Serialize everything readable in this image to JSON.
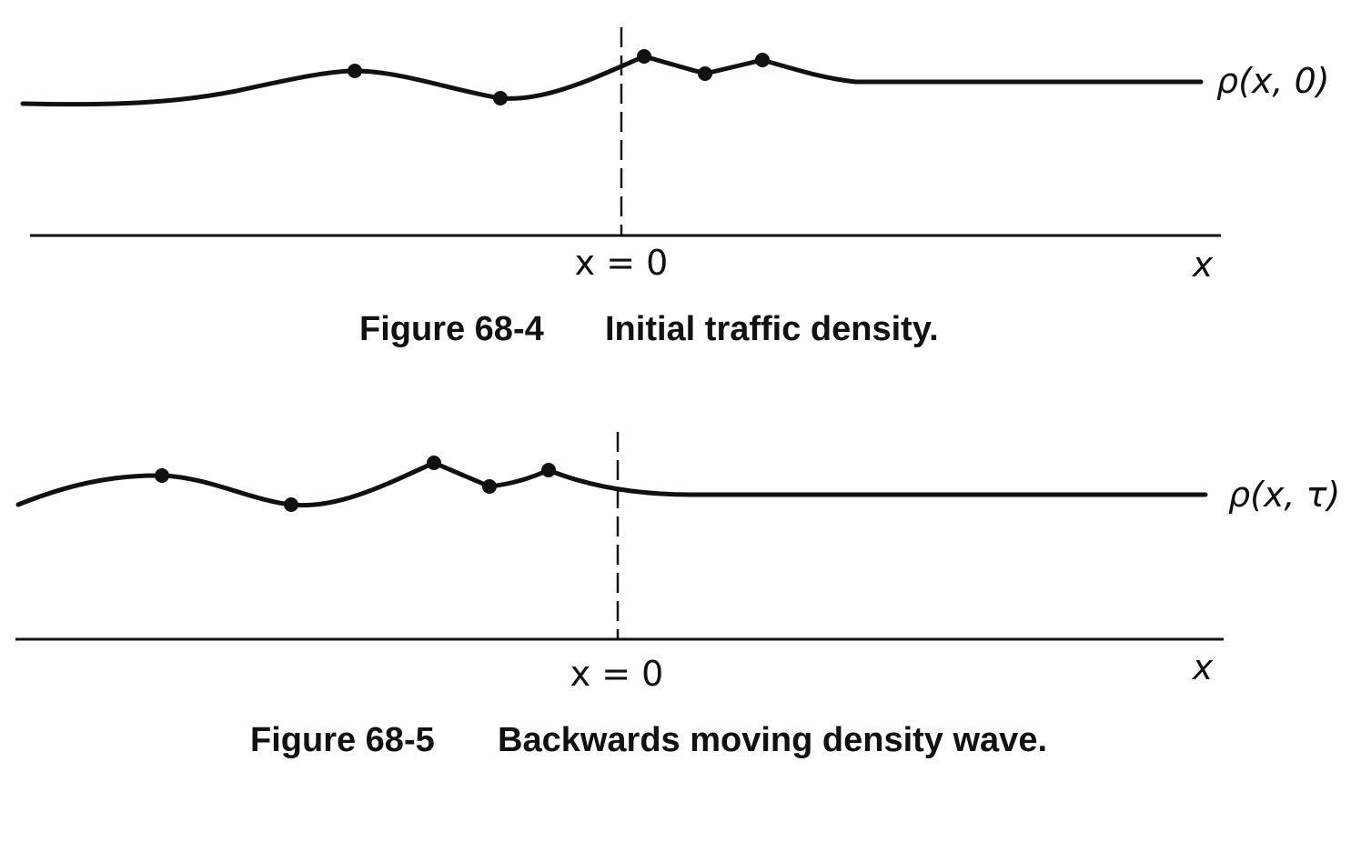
{
  "figures": [
    {
      "curve_label": "ρ(x, 0)",
      "origin_label": "x = 0",
      "axis_label": "x",
      "caption_number": "Figure 68-4",
      "caption_text": "Initial traffic density."
    },
    {
      "curve_label": "ρ(x, τ)",
      "origin_label": "x = 0",
      "axis_label": "x",
      "caption_number": "Figure 68-5",
      "caption_text": "Backwards moving density wave."
    }
  ]
}
